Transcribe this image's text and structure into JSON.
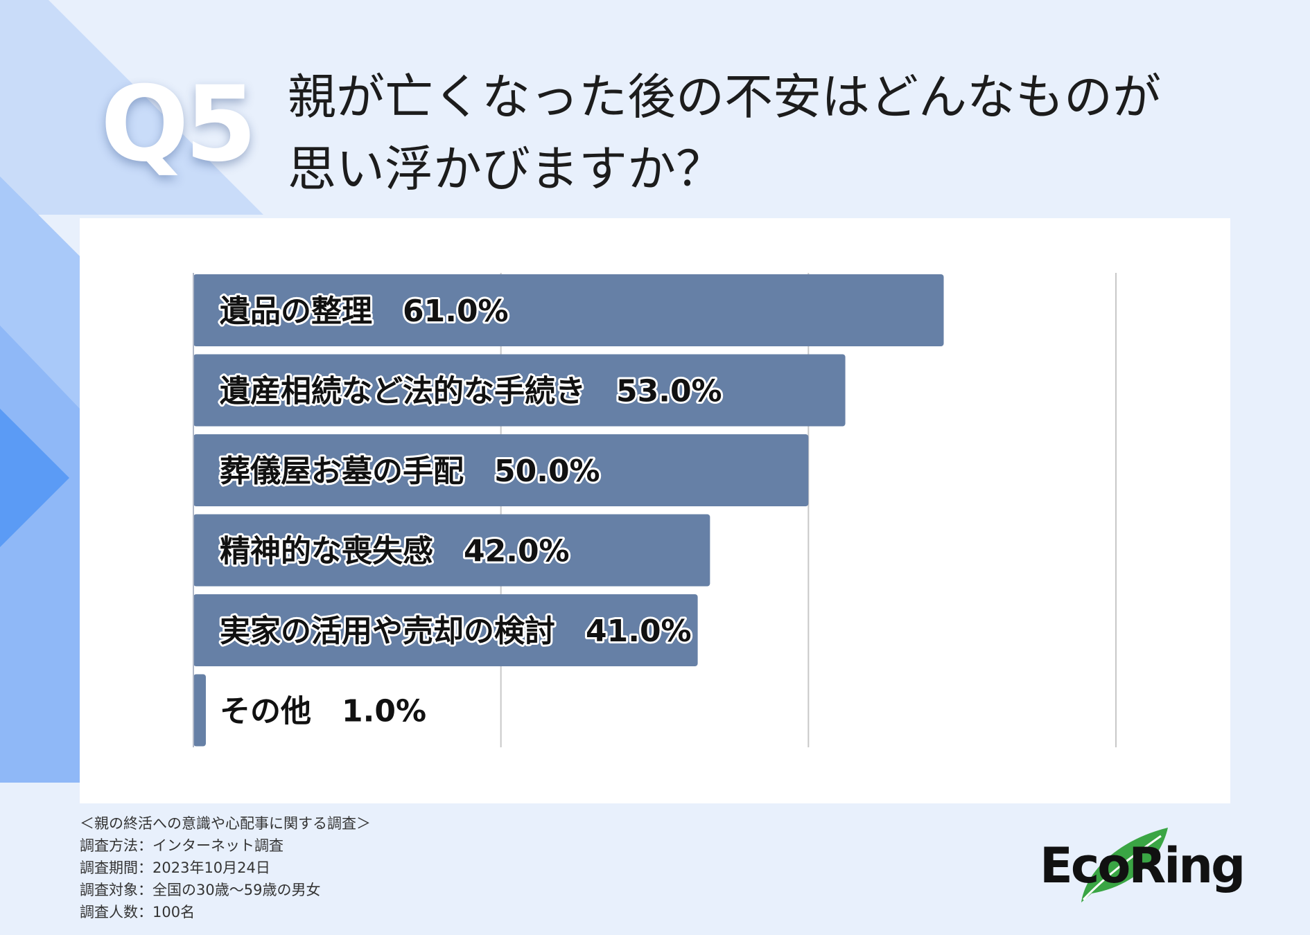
{
  "question_label": "Q5",
  "title_lines": [
    "親が亡くなった後の不安はどんなものが",
    "思い浮かびますか？"
  ],
  "chart_data": {
    "type": "bar",
    "orientation": "horizontal",
    "categories": [
      "遺品の整理",
      "遺産相続など法的な手続き",
      "葬儀屋お墓の手配",
      "精神的な喪失感",
      "実家の活用や売却の検討",
      "その他"
    ],
    "values": [
      61.0,
      53.0,
      50.0,
      42.0,
      41.0,
      1.0
    ],
    "value_labels": [
      "61.0%",
      "53.0%",
      "50.0%",
      "42.0%",
      "41.0%",
      "1.0%"
    ],
    "xlim": [
      0,
      75
    ],
    "gridlines_at": [
      25,
      50,
      75
    ],
    "grid": true,
    "bar_color": "#6680a6"
  },
  "footer": {
    "survey_name": "＜親の終活への意識や心配事に関する調査＞",
    "method": "調査方法：インターネット調査",
    "period": "調査期間：2023年10月24日",
    "target": "調査対象：全国の30歳〜59歳の男女",
    "respondents": "調査人数：100名"
  },
  "logo": {
    "text": "EcoRing",
    "icon": "leaf-icon",
    "leaf_color": "#3aa544"
  },
  "colors": {
    "background": "#e8f0fc",
    "accent_blue": "#5b9bf5",
    "text": "#1c1c1c"
  }
}
